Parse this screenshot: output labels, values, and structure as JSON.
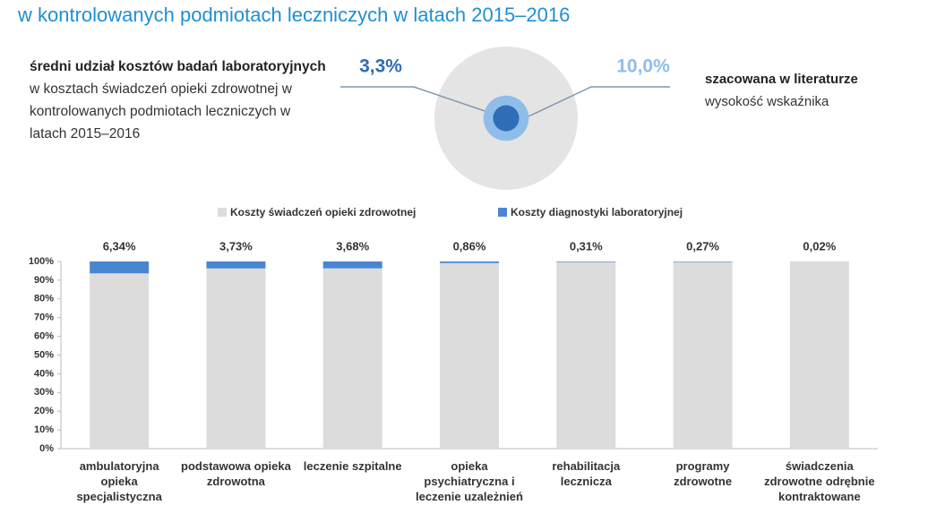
{
  "title": "w kontrolowanych podmiotach leczniczych w latach 2015–2016",
  "chart_data": [
    {
      "type": "nested-circles",
      "values": [
        3.3,
        10.0
      ],
      "value_labels": [
        "3,3%",
        "10,0%"
      ],
      "colors": [
        "#2f6db6",
        "#8fbde9"
      ],
      "descriptions": [
        {
          "bold": "średni udział kosztów badań laboratoryjnych",
          "text": " w kosztach świadczeń opieki zdrowotnej  w kontrolowanych podmiotach leczniczych w latach 2015–2016"
        },
        {
          "bold": "szacowana w literaturze",
          "text": "wysokość wskaźnika"
        }
      ]
    },
    {
      "type": "stacked-bar",
      "categories": [
        "ambulatoryjna opieka specjalistyczna",
        "podstawowa opieka zdrowotna",
        "leczenie szpitalne",
        "opieka psychiatryczna i leczenie uzależnień",
        "rehabilitacja lecznicza",
        "programy zdrowotne",
        "świadczenia zdrowotne odrębnie kontraktowane"
      ],
      "series": [
        {
          "name": "Koszty świadczeń opieki zdrowotnej",
          "color": "#dcdcdc",
          "values": [
            93.66,
            96.27,
            96.32,
            99.14,
            99.69,
            99.73,
            99.98
          ]
        },
        {
          "name": "Koszty diagnostyki laboratoryjnej",
          "color": "#4a86d0",
          "values": [
            6.34,
            3.73,
            3.68,
            0.86,
            0.31,
            0.27,
            0.02
          ],
          "value_labels": [
            "6,34%",
            "3,73%",
            "3,68%",
            "0,86%",
            "0,31%",
            "0,27%",
            "0,02%"
          ]
        }
      ],
      "ylim": [
        0,
        100
      ],
      "yticks": [
        {
          "value": 0,
          "label": "0%"
        },
        {
          "value": 10,
          "label": "10%"
        },
        {
          "value": 20,
          "label": "20%"
        },
        {
          "value": 30,
          "label": "30%"
        },
        {
          "value": 40,
          "label": "40%"
        },
        {
          "value": 50,
          "label": "50%"
        },
        {
          "value": 60,
          "label": "60%"
        },
        {
          "value": 70,
          "label": "70%"
        },
        {
          "value": 80,
          "label": "80%"
        },
        {
          "value": 90,
          "label": "90%"
        },
        {
          "value": 100,
          "label": "100%"
        }
      ]
    }
  ]
}
